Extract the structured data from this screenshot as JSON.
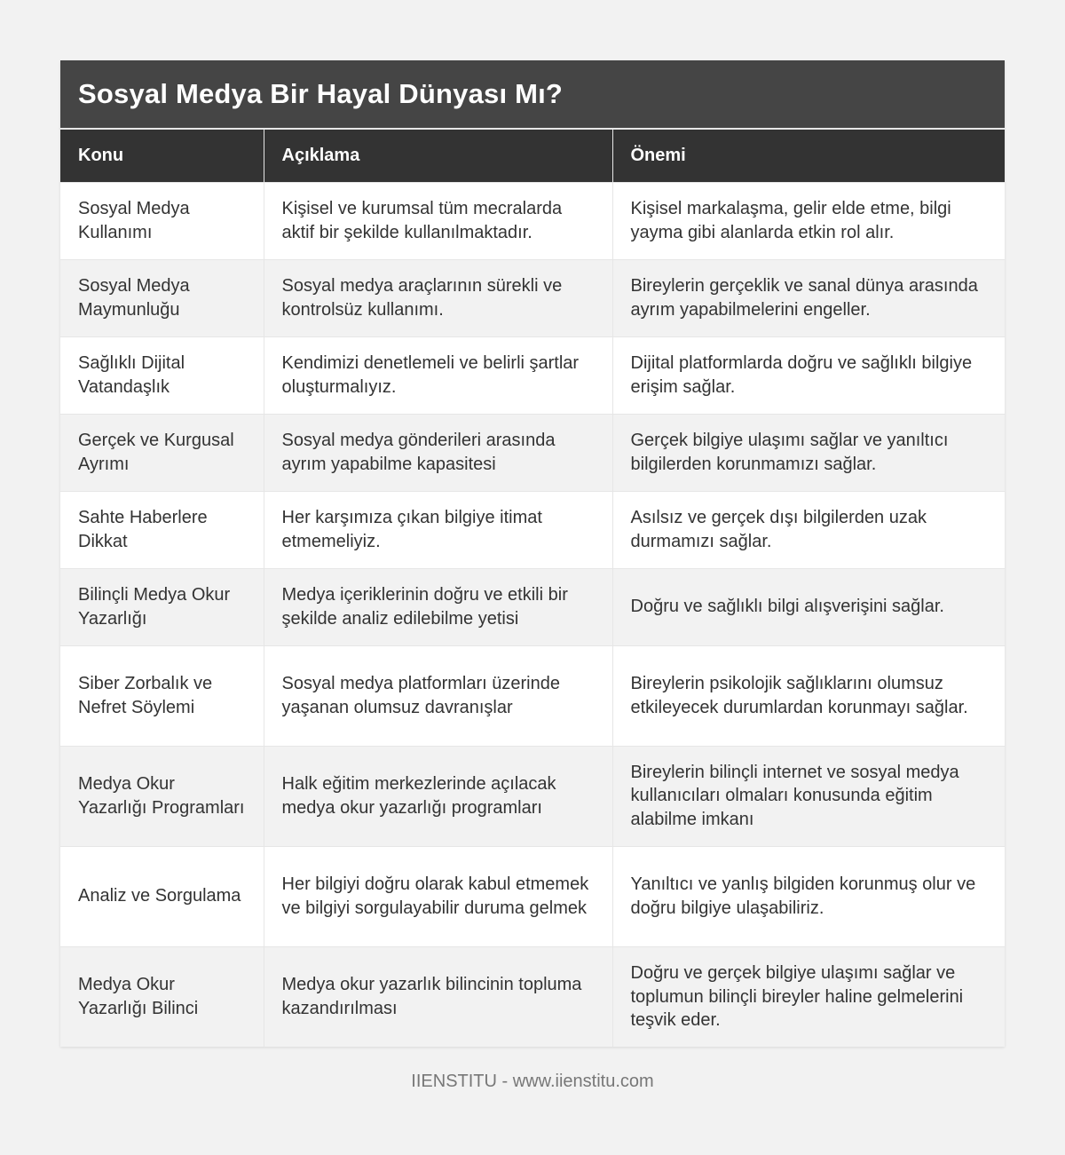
{
  "title": "Sosyal Medya Bir Hayal Dünyası Mı?",
  "columns": [
    "Konu",
    "Açıklama",
    "Önemi"
  ],
  "rows": [
    [
      "Sosyal Medya Kullanımı",
      "Kişisel ve kurumsal tüm mecralarda aktif bir şekilde kullanılmaktadır.",
      "Kişisel markalaşma, gelir elde etme, bilgi yayma gibi alanlarda etkin rol alır."
    ],
    [
      "Sosyal Medya Maymunluğu",
      "Sosyal medya araçlarının sürekli ve kontrolsüz kullanımı.",
      "Bireylerin gerçeklik ve sanal dünya arasında ayrım yapabilmelerini engeller."
    ],
    [
      "Sağlıklı Dijital Vatandaşlık",
      "Kendimizi denetlemeli ve belirli şartlar oluşturmalıyız.",
      "Dijital platformlarda doğru ve sağlıklı bilgiye erişim sağlar."
    ],
    [
      "Gerçek ve Kurgusal Ayrımı",
      "Sosyal medya gönderileri arasında ayrım yapabilme kapasitesi",
      "Gerçek bilgiye ulaşımı sağlar ve yanıltıcı bilgilerden korunmamızı sağlar."
    ],
    [
      "Sahte Haberlere Dikkat",
      "Her karşımıza çıkan bilgiye itimat etmemeliyiz.",
      "Asılsız ve gerçek dışı bilgilerden uzak durmamızı sağlar."
    ],
    [
      "Bilinçli Medya Okur Yazarlığı",
      "Medya içeriklerinin doğru ve etkili bir şekilde analiz edilebilme yetisi",
      "Doğru ve sağlıklı bilgi alışverişini sağlar."
    ],
    [
      "Siber Zorbalık ve Nefret Söylemi",
      "Sosyal medya platformları üzerinde yaşanan olumsuz davranışlar",
      "Bireylerin psikolojik sağlıklarını olumsuz etkileyecek durumlardan korunmayı sağlar."
    ],
    [
      "Medya Okur Yazarlığı Programları",
      "Halk eğitim merkezlerinde açılacak medya okur yazarlığı programları",
      "Bireylerin bilinçli internet ve sosyal medya kullanıcıları olmaları konusunda eğitim alabilme imkanı"
    ],
    [
      "Analiz ve Sorgulama",
      "Her bilgiyi doğru olarak kabul etmemek ve bilgiyi sorgulayabilir duruma gelmek",
      "Yanıltıcı ve yanlış bilgiden korunmuş olur ve doğru bilgiye ulaşabiliriz."
    ],
    [
      "Medya Okur Yazarlığı Bilinci",
      "Medya okur yazarlık bilincinin topluma kazandırılması",
      "Doğru ve gerçek bilgiye ulaşımı sağlar ve toplumun bilinçli bireyler haline gelmelerini teşvik eder."
    ]
  ],
  "footer": "IIENSTITU - www.iienstitu.com"
}
